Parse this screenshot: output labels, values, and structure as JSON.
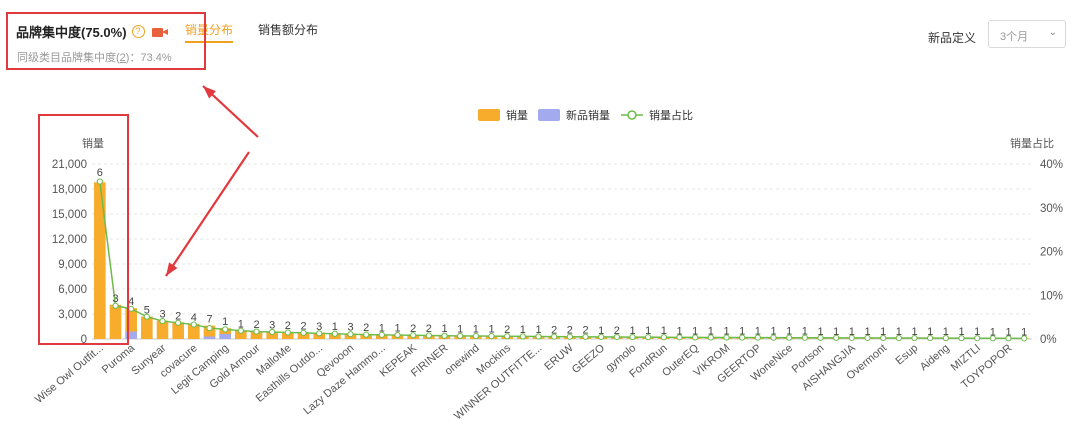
{
  "header": {
    "title": "品牌集中度(75.0%)",
    "help_icon": "?",
    "subtitle_prefix": "同级类目品牌集中度(",
    "subtitle_link": "2",
    "subtitle_suffix": ")：73.4%",
    "tabs": [
      {
        "label": "销量分布",
        "active": true
      },
      {
        "label": "销售额分布",
        "active": false
      }
    ],
    "new_def_label": "新品定义",
    "select_value": "3个月"
  },
  "colors": {
    "sales": "#f7ac2b",
    "new_sales": "#a4aaee",
    "share_line": "#6dbb4a",
    "annotation": "#e0393e",
    "accent": "#f0a020"
  },
  "chart_data": {
    "type": "bar",
    "legend_position": "top-center",
    "grid": true,
    "ylabel_left": "销量",
    "ylabel_right": "销量占比",
    "ylim_left": [
      0,
      21000
    ],
    "yticks_left": [
      "0",
      "3,000",
      "6,000",
      "9,000",
      "12,000",
      "15,000",
      "18,000",
      "21,000"
    ],
    "ylim_right": [
      0,
      40
    ],
    "yticks_right": [
      "0%",
      "10%",
      "20%",
      "30%",
      "40%"
    ],
    "series": [
      {
        "name": "销量",
        "kind": "bar"
      },
      {
        "name": "新品销量",
        "kind": "bar"
      },
      {
        "name": "销量占比",
        "kind": "line"
      }
    ],
    "categories": [
      "Wise Owl Outfit...",
      "",
      "Puroma",
      "",
      "Sunyear",
      "",
      "covacure",
      "",
      "Legit Camping",
      "",
      "Gold Armour",
      "",
      "MalloMe",
      "",
      "Easthills Outdo...",
      "",
      "Qevooon",
      "",
      "Lazy Daze Hammo...",
      "",
      "KEPEAK",
      "",
      "FIRINER",
      "",
      "onewind",
      "",
      "Mockins",
      "",
      "WINNER OUTFITTE...",
      "",
      "ERUW",
      "",
      "GEEZO",
      "",
      "gymolo",
      "",
      "FondRun",
      "",
      "OuterEQ",
      "",
      "VIKROM",
      "",
      "GEERTOP",
      "",
      "WoneNice",
      "",
      "Portson",
      "",
      "AISHANGJIA",
      "",
      "Overmont",
      "",
      "Esup",
      "",
      "Aideng",
      "",
      "MIZTLI",
      "",
      "TOYPOPOR",
      ""
    ],
    "sales": [
      18800,
      4100,
      3700,
      2700,
      2200,
      2000,
      1800,
      1600,
      1300,
      1050,
      950,
      900,
      850,
      800,
      750,
      700,
      650,
      600,
      550,
      520,
      500,
      480,
      460,
      440,
      420,
      400,
      380,
      360,
      340,
      320,
      300,
      280,
      260,
      250,
      240,
      230,
      220,
      210,
      200,
      190,
      180,
      170,
      160,
      155,
      150,
      145,
      140,
      135,
      130,
      125,
      120,
      115,
      110,
      105,
      100,
      95,
      90,
      85,
      80,
      75
    ],
    "new_sales": [
      0,
      0,
      900,
      0,
      0,
      0,
      0,
      300,
      600,
      0,
      0,
      0,
      0,
      0,
      0,
      0,
      0,
      0,
      0,
      0,
      0,
      0,
      0,
      0,
      0,
      0,
      0,
      0,
      0,
      0,
      0,
      0,
      0,
      0,
      0,
      0,
      0,
      0,
      0,
      0,
      0,
      0,
      0,
      0,
      0,
      0,
      0,
      0,
      0,
      0,
      0,
      0,
      0,
      0,
      0,
      0,
      0,
      0,
      0,
      0
    ],
    "share_pct": [
      36.0,
      7.6,
      6.9,
      5.1,
      4.1,
      3.7,
      3.3,
      2.5,
      2.2,
      1.9,
      1.7,
      1.6,
      1.5,
      1.4,
      1.3,
      1.2,
      1.1,
      1.0,
      0.95,
      0.9,
      0.85,
      0.8,
      0.75,
      0.7,
      0.68,
      0.65,
      0.62,
      0.6,
      0.58,
      0.55,
      0.52,
      0.5,
      0.48,
      0.46,
      0.44,
      0.42,
      0.4,
      0.38,
      0.36,
      0.35,
      0.34,
      0.33,
      0.32,
      0.31,
      0.3,
      0.29,
      0.28,
      0.27,
      0.26,
      0.25,
      0.24,
      0.23,
      0.22,
      0.21,
      0.2,
      0.19,
      0.18,
      0.17,
      0.16,
      0.15
    ],
    "point_labels": [
      "6",
      "3",
      "4",
      "5",
      "3",
      "2",
      "4",
      "7",
      "1",
      "1",
      "2",
      "3",
      "2",
      "2",
      "3",
      "1",
      "3",
      "2",
      "1",
      "1",
      "2",
      "2",
      "1",
      "1",
      "1",
      "1",
      "2",
      "1",
      "1",
      "2",
      "2",
      "2",
      "1",
      "2",
      "1",
      "1",
      "1",
      "1",
      "1",
      "1",
      "1",
      "1",
      "1",
      "1",
      "1",
      "1",
      "1",
      "1",
      "1",
      "1",
      "1",
      "1",
      "1",
      "1",
      "1",
      "1",
      "1",
      "1",
      "1",
      "1"
    ]
  }
}
